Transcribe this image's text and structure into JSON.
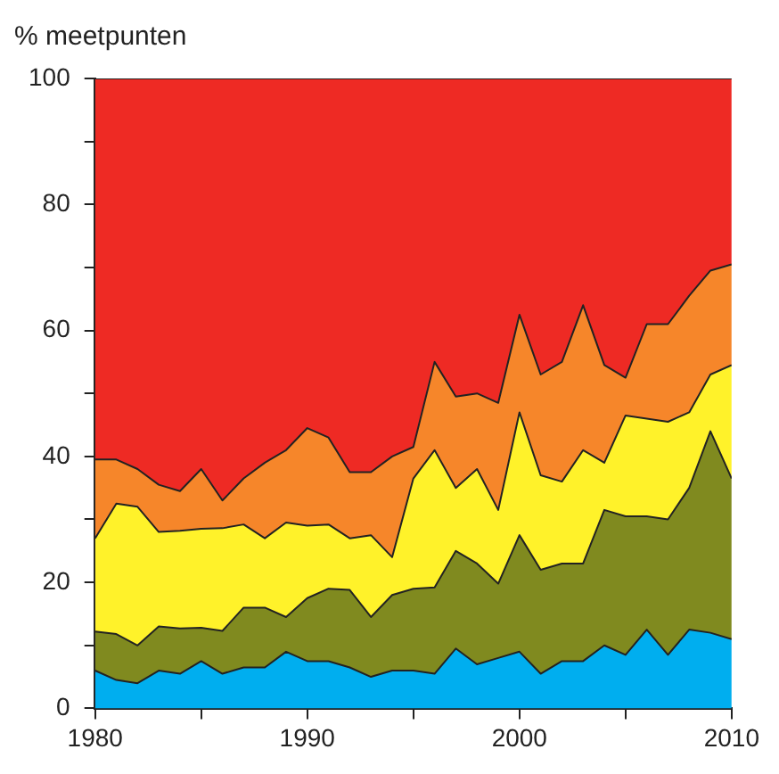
{
  "chart_data": {
    "type": "area",
    "stacked": true,
    "ylabel": "% meetpunten",
    "x": [
      1980,
      1981,
      1982,
      1983,
      1984,
      1985,
      1986,
      1987,
      1988,
      1989,
      1990,
      1991,
      1992,
      1993,
      1994,
      1995,
      1996,
      1997,
      1998,
      1999,
      2000,
      2001,
      2002,
      2003,
      2004,
      2005,
      2006,
      2007,
      2008,
      2009,
      2010
    ],
    "series": [
      {
        "color": "#00aeef",
        "values": [
          6,
          4.5,
          4,
          6,
          5.5,
          7.5,
          5.5,
          6.5,
          6.5,
          9,
          7.5,
          7.5,
          6.5,
          5,
          6,
          6,
          5.5,
          9.5,
          7,
          8,
          9,
          5.5,
          7.5,
          7.5,
          10,
          8.5,
          12.5,
          8.5,
          12.5,
          12,
          11
        ]
      },
      {
        "color": "#808a1f",
        "values": [
          6.2,
          7.3,
          6,
          7,
          7.2,
          5.3,
          6.8,
          9.5,
          9.5,
          5.5,
          10,
          11.5,
          12.3,
          9.5,
          12,
          13,
          13.7,
          15.5,
          16,
          11.8,
          18.5,
          16.5,
          15.5,
          15.5,
          21.5,
          22,
          18,
          21.5,
          22.5,
          32,
          25.5
        ]
      },
      {
        "color": "#fff22a",
        "values": [
          14.8,
          20.7,
          22,
          15,
          15.5,
          15.7,
          16.3,
          13.2,
          11,
          15,
          11.5,
          10.2,
          8.2,
          13,
          6,
          17.5,
          21.8,
          10,
          15,
          11.7,
          19.5,
          15,
          13,
          18,
          7.5,
          16,
          15.5,
          15.5,
          12,
          9,
          18
        ]
      },
      {
        "color": "#f6862a",
        "values": [
          12.5,
          7,
          6,
          7.5,
          6.3,
          9.5,
          4.4,
          7.3,
          12,
          11.5,
          15.5,
          13.8,
          10.5,
          10,
          16,
          5,
          14,
          14.5,
          12,
          17,
          15.5,
          16,
          19,
          23,
          15.5,
          6,
          15,
          15.5,
          18.5,
          16.5,
          16
        ]
      },
      {
        "color": "#ee2a24",
        "values": [
          60.5,
          60.5,
          62,
          64.5,
          65.5,
          62,
          67,
          63.5,
          61,
          59,
          55.5,
          57,
          62.5,
          62.5,
          60,
          58.5,
          45,
          50.5,
          50,
          51.5,
          37.5,
          47,
          45,
          36,
          45.5,
          47.5,
          39,
          39,
          34.5,
          30.5,
          29.5
        ]
      }
    ],
    "xlim": [
      1980,
      2010
    ],
    "xticks": [
      1980,
      {
        "value": 1985,
        "label": null
      },
      1990,
      {
        "value": 1995,
        "label": null
      },
      2000,
      {
        "value": 2005,
        "label": null
      },
      2010
    ],
    "ylim": [
      0,
      100
    ],
    "yticks": [
      0,
      {
        "value": 10,
        "label": null
      },
      20,
      {
        "value": 30,
        "label": null
      },
      40,
      {
        "value": 50,
        "label": null
      },
      60,
      {
        "value": 70,
        "label": null
      },
      80,
      {
        "value": 90,
        "label": null
      },
      100
    ],
    "grid": false,
    "legend": false
  }
}
